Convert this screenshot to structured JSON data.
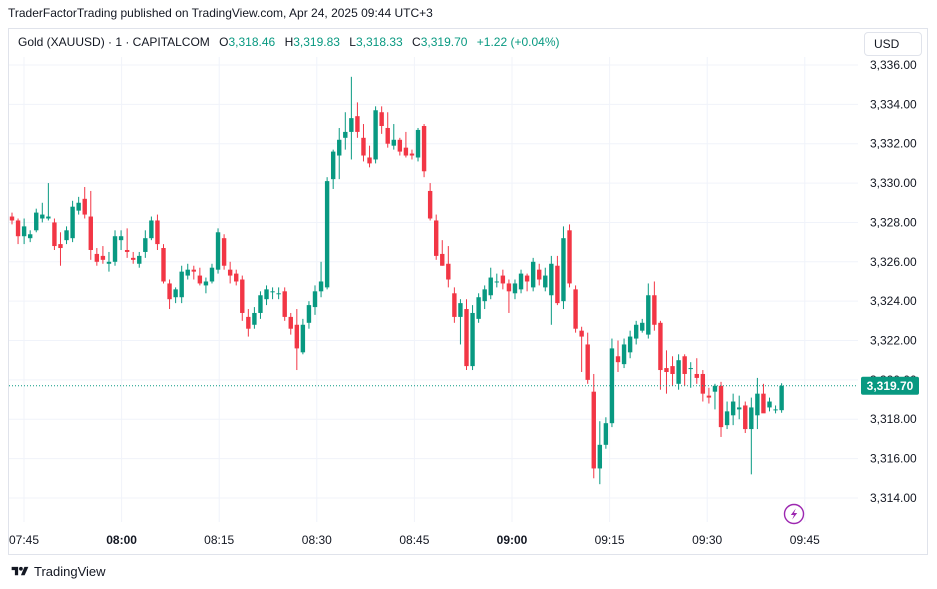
{
  "header": {
    "published_line": "TraderFactorTrading published on TradingView.com, Apr 24, 2025 09:44 UTC+3"
  },
  "legend": {
    "symbol": "Gold (XAUUSD) · 1 · CAPITALCOM",
    "o_label": "O",
    "o_value": "3,318.46",
    "h_label": "H",
    "h_value": "3,319.83",
    "l_label": "L",
    "l_value": "3,318.33",
    "c_label": "C",
    "c_value": "3,319.70",
    "change": "+1.22 (+0.04%)"
  },
  "currency_button": "USD",
  "footer": {
    "brand": "TradingView"
  },
  "colors": {
    "up": "#089981",
    "down": "#f23645",
    "grid": "#f0f3fa",
    "text": "#131722",
    "price_tag": "#089981",
    "lightning": "#9c27b0"
  },
  "chart_data": {
    "type": "candlestick",
    "symbol": "Gold (XAUUSD)",
    "interval": "1 minute",
    "ylim": [
      3313,
      3337
    ],
    "y_ticks": [
      "3,314.00",
      "3,316.00",
      "3,318.00",
      "3,320.00",
      "3,322.00",
      "3,324.00",
      "3,326.00",
      "3,328.00",
      "3,330.00",
      "3,332.00",
      "3,334.00",
      "3,336.00"
    ],
    "x_ticks": [
      "07:45",
      "08:00",
      "08:15",
      "08:30",
      "08:45",
      "09:00",
      "09:15",
      "09:30",
      "09:45"
    ],
    "x_tick_bold": [
      "08:00",
      "09:00"
    ],
    "last_price": "3,319.70",
    "last_price_value": 3319.7,
    "grid": true,
    "candles": [
      [
        3328.3,
        3328.5,
        3327.9,
        3328.1
      ],
      [
        3328.1,
        3328.2,
        3326.9,
        3327.3
      ],
      [
        3327.3,
        3328.2,
        3326.9,
        3327.8
      ],
      [
        3327.2,
        3327.6,
        3327.0,
        3327.4
      ],
      [
        3327.6,
        3328.7,
        3327.5,
        3328.5
      ],
      [
        3328.2,
        3329.0,
        3328.0,
        3328.4
      ],
      [
        3328.2,
        3330.0,
        3328.1,
        3328.3
      ],
      [
        3328.0,
        3328.2,
        3326.6,
        3326.8
      ],
      [
        3326.9,
        3327.5,
        3325.8,
        3326.7
      ],
      [
        3327.1,
        3327.8,
        3326.9,
        3327.6
      ],
      [
        3327.2,
        3329.1,
        3327.0,
        3328.8
      ],
      [
        3328.6,
        3329.3,
        3328.4,
        3329.0
      ],
      [
        3329.2,
        3329.8,
        3328.2,
        3328.4
      ],
      [
        3328.3,
        3329.6,
        3326.1,
        3326.6
      ],
      [
        3326.4,
        3326.7,
        3325.8,
        3326.0
      ],
      [
        3326.3,
        3326.8,
        3325.9,
        3326.1
      ],
      [
        3325.9,
        3326.5,
        3325.5,
        3326.0
      ],
      [
        3326.0,
        3327.6,
        3325.8,
        3327.3
      ],
      [
        3327.1,
        3327.6,
        3326.6,
        3327.3
      ],
      [
        3326.6,
        3327.7,
        3326.2,
        3326.5
      ],
      [
        3326.2,
        3326.5,
        3325.9,
        3326.1
      ],
      [
        3325.9,
        3326.5,
        3325.7,
        3326.3
      ],
      [
        3326.5,
        3327.6,
        3326.2,
        3327.2
      ],
      [
        3327.2,
        3328.3,
        3327.1,
        3328.1
      ],
      [
        3328.1,
        3328.4,
        3326.6,
        3326.9
      ],
      [
        3326.7,
        3326.9,
        3324.9,
        3325.0
      ],
      [
        3324.9,
        3325.1,
        3323.6,
        3324.1
      ],
      [
        3324.2,
        3324.7,
        3323.9,
        3324.6
      ],
      [
        3324.2,
        3325.8,
        3323.9,
        3325.5
      ],
      [
        3325.3,
        3325.9,
        3325.1,
        3325.6
      ],
      [
        3325.6,
        3325.8,
        3325.1,
        3325.5
      ],
      [
        3325.3,
        3325.7,
        3324.8,
        3324.9
      ],
      [
        3324.8,
        3325.2,
        3324.4,
        3325.0
      ],
      [
        3325.0,
        3325.9,
        3324.9,
        3325.7
      ],
      [
        3325.6,
        3327.7,
        3325.4,
        3327.5
      ],
      [
        3327.2,
        3327.4,
        3325.6,
        3325.8
      ],
      [
        3325.6,
        3326.0,
        3324.9,
        3325.3
      ],
      [
        3325.4,
        3325.6,
        3324.8,
        3325.0
      ],
      [
        3325.1,
        3325.3,
        3323.0,
        3323.4
      ],
      [
        3323.2,
        3323.6,
        3322.2,
        3322.6
      ],
      [
        3322.8,
        3323.7,
        3322.6,
        3323.4
      ],
      [
        3323.4,
        3324.5,
        3323.1,
        3324.3
      ],
      [
        3324.1,
        3324.8,
        3323.8,
        3324.6
      ],
      [
        3324.5,
        3324.7,
        3324.1,
        3324.5
      ],
      [
        3324.4,
        3324.7,
        3324.1,
        3324.4
      ],
      [
        3324.5,
        3324.7,
        3323.0,
        3323.2
      ],
      [
        3323.2,
        3323.4,
        3322.3,
        3322.6
      ],
      [
        3322.8,
        3323.6,
        3320.5,
        3321.6
      ],
      [
        3321.4,
        3323.1,
        3321.3,
        3322.8
      ],
      [
        3322.9,
        3324.0,
        3322.6,
        3323.8
      ],
      [
        3323.7,
        3324.8,
        3323.3,
        3324.5
      ],
      [
        3324.5,
        3326.0,
        3324.2,
        3325.0
      ],
      [
        3324.7,
        3330.3,
        3324.6,
        3330.1
      ],
      [
        3330.2,
        3331.7,
        3329.7,
        3331.6
      ],
      [
        3331.4,
        3332.8,
        3330.2,
        3332.2
      ],
      [
        3332.3,
        3333.6,
        3331.7,
        3332.6
      ],
      [
        3332.6,
        3335.4,
        3331.2,
        3333.3
      ],
      [
        3333.4,
        3334.1,
        3332.3,
        3332.6
      ],
      [
        3332.3,
        3333.0,
        3331.1,
        3331.4
      ],
      [
        3331.3,
        3331.9,
        3330.8,
        3331.0
      ],
      [
        3331.2,
        3333.9,
        3331.0,
        3333.7
      ],
      [
        3333.6,
        3333.9,
        3332.5,
        3332.9
      ],
      [
        3332.8,
        3333.6,
        3331.8,
        3332.0
      ],
      [
        3331.9,
        3333.0,
        3331.7,
        3332.2
      ],
      [
        3332.2,
        3332.3,
        3331.4,
        3331.6
      ],
      [
        3331.8,
        3332.6,
        3331.3,
        3331.4
      ],
      [
        3331.5,
        3331.7,
        3331.2,
        3331.4
      ],
      [
        3331.3,
        3332.8,
        3331.1,
        3332.7
      ],
      [
        3332.9,
        3333.0,
        3330.3,
        3330.6
      ],
      [
        3329.6,
        3330.0,
        3328.1,
        3328.2
      ],
      [
        3328.1,
        3328.4,
        3326.1,
        3326.3
      ],
      [
        3326.4,
        3327.1,
        3325.8,
        3325.8
      ],
      [
        3325.9,
        3326.8,
        3324.7,
        3325.1
      ],
      [
        3324.4,
        3324.7,
        3322.9,
        3323.2
      ],
      [
        3323.2,
        3324.1,
        3321.8,
        3323.9
      ],
      [
        3323.6,
        3324.1,
        3320.5,
        3320.7
      ],
      [
        3320.7,
        3323.8,
        3320.5,
        3323.4
      ],
      [
        3323.1,
        3324.4,
        3322.9,
        3324.2
      ],
      [
        3324.0,
        3324.8,
        3323.6,
        3324.6
      ],
      [
        3324.3,
        3325.7,
        3324.1,
        3325.2
      ],
      [
        3325.0,
        3325.4,
        3324.7,
        3325.0
      ],
      [
        3325.3,
        3325.6,
        3324.6,
        3324.9
      ],
      [
        3324.9,
        3325.1,
        3323.4,
        3324.5
      ],
      [
        3324.4,
        3325.1,
        3324.1,
        3324.9
      ],
      [
        3324.6,
        3325.6,
        3324.4,
        3325.4
      ],
      [
        3325.3,
        3325.4,
        3324.5,
        3325.0
      ],
      [
        3324.7,
        3326.2,
        3324.5,
        3326.0
      ],
      [
        3325.6,
        3325.9,
        3324.8,
        3325.1
      ],
      [
        3324.7,
        3325.7,
        3324.5,
        3325.3
      ],
      [
        3324.3,
        3326.3,
        3322.8,
        3325.9
      ],
      [
        3325.8,
        3326.3,
        3323.8,
        3323.9
      ],
      [
        3324.0,
        3327.8,
        3323.6,
        3327.2
      ],
      [
        3327.6,
        3327.9,
        3324.7,
        3324.9
      ],
      [
        3324.6,
        3324.8,
        3322.4,
        3322.6
      ],
      [
        3322.5,
        3322.7,
        3320.4,
        3322.2
      ],
      [
        3321.8,
        3322.4,
        3319.8,
        3320.0
      ],
      [
        3319.4,
        3320.3,
        3315.0,
        3315.5
      ],
      [
        3315.5,
        3317.9,
        3314.7,
        3316.7
      ],
      [
        3316.7,
        3318.1,
        3316.5,
        3317.8
      ],
      [
        3317.8,
        3322.1,
        3317.6,
        3321.6
      ],
      [
        3321.2,
        3322.0,
        3320.4,
        3320.9
      ],
      [
        3320.8,
        3322.1,
        3320.6,
        3321.8
      ],
      [
        3321.4,
        3322.5,
        3321.1,
        3322.2
      ],
      [
        3322.1,
        3323.0,
        3321.8,
        3322.8
      ],
      [
        3322.5,
        3323.1,
        3322.4,
        3322.9
      ],
      [
        3322.3,
        3324.9,
        3322.1,
        3324.3
      ],
      [
        3324.3,
        3325.0,
        3322.5,
        3322.8
      ],
      [
        3322.9,
        3323.0,
        3319.5,
        3320.5
      ],
      [
        3320.6,
        3321.5,
        3319.3,
        3320.4
      ],
      [
        3320.7,
        3321.2,
        3319.7,
        3320.3
      ],
      [
        3319.8,
        3321.3,
        3319.5,
        3321.0
      ],
      [
        3321.2,
        3321.3,
        3319.7,
        3320.3
      ],
      [
        3320.6,
        3320.9,
        3319.6,
        3320.6
      ],
      [
        3320.3,
        3321.1,
        3319.8,
        3320.1
      ],
      [
        3320.3,
        3320.5,
        3318.9,
        3319.3
      ],
      [
        3319.2,
        3319.6,
        3318.8,
        3319.1
      ],
      [
        3319.4,
        3319.8,
        3318.5,
        3319.7
      ],
      [
        3319.7,
        3319.9,
        3317.1,
        3317.6
      ],
      [
        3317.7,
        3318.9,
        3317.5,
        3318.4
      ],
      [
        3318.2,
        3319.3,
        3317.7,
        3318.9
      ],
      [
        3318.5,
        3319.2,
        3318.0,
        3318.6
      ],
      [
        3318.7,
        3318.9,
        3317.3,
        3317.5
      ],
      [
        3317.5,
        3319.1,
        3315.2,
        3318.6
      ],
      [
        3318.2,
        3320.1,
        3317.5,
        3319.3
      ],
      [
        3319.3,
        3319.8,
        3318.4,
        3318.3
      ],
      [
        3318.6,
        3319.1,
        3318.4,
        3318.9
      ],
      [
        3318.5,
        3318.7,
        3318.3,
        3318.5
      ],
      [
        3318.46,
        3319.83,
        3318.33,
        3319.7
      ]
    ]
  }
}
